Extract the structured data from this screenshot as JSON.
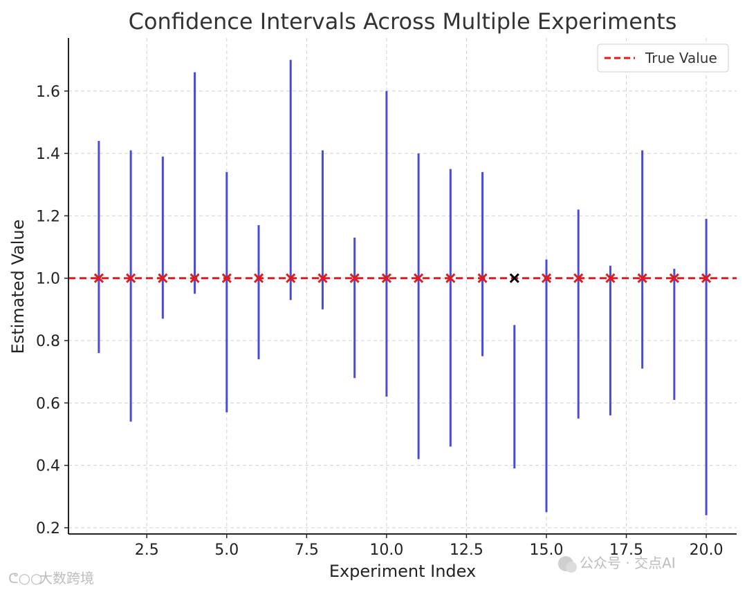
{
  "chart_data": {
    "type": "errorbar",
    "title": "Confidence Intervals Across Multiple Experiments",
    "xlabel": "Experiment Index",
    "ylabel": "Estimated Value",
    "xlim": [
      0.05,
      20.95
    ],
    "ylim": [
      0.18,
      1.77
    ],
    "xticks": [
      "2.5",
      "5.0",
      "7.5",
      "10.0",
      "12.5",
      "15.0",
      "17.5",
      "20.0"
    ],
    "yticks": [
      "0.2",
      "0.4",
      "0.6",
      "0.8",
      "1.0",
      "1.2",
      "1.4",
      "1.6"
    ],
    "grid": true,
    "legend": {
      "position": "top-right",
      "entries": [
        "True Value"
      ]
    },
    "true_value": 1.0,
    "series": [
      {
        "experiment": 1,
        "lower": 0.76,
        "upper": 1.44,
        "contains_true": true
      },
      {
        "experiment": 2,
        "lower": 0.54,
        "upper": 1.41,
        "contains_true": true
      },
      {
        "experiment": 3,
        "lower": 0.87,
        "upper": 1.39,
        "contains_true": true
      },
      {
        "experiment": 4,
        "lower": 0.95,
        "upper": 1.66,
        "contains_true": true
      },
      {
        "experiment": 5,
        "lower": 0.57,
        "upper": 1.34,
        "contains_true": true
      },
      {
        "experiment": 6,
        "lower": 0.74,
        "upper": 1.17,
        "contains_true": true
      },
      {
        "experiment": 7,
        "lower": 0.93,
        "upper": 1.7,
        "contains_true": true
      },
      {
        "experiment": 8,
        "lower": 0.9,
        "upper": 1.41,
        "contains_true": true
      },
      {
        "experiment": 9,
        "lower": 0.68,
        "upper": 1.13,
        "contains_true": true
      },
      {
        "experiment": 10,
        "lower": 0.62,
        "upper": 1.6,
        "contains_true": true
      },
      {
        "experiment": 11,
        "lower": 0.42,
        "upper": 1.4,
        "contains_true": true
      },
      {
        "experiment": 12,
        "lower": 0.46,
        "upper": 1.35,
        "contains_true": true
      },
      {
        "experiment": 13,
        "lower": 0.75,
        "upper": 1.34,
        "contains_true": true
      },
      {
        "experiment": 14,
        "lower": 0.39,
        "upper": 0.85,
        "contains_true": false
      },
      {
        "experiment": 15,
        "lower": 0.25,
        "upper": 1.06,
        "contains_true": true
      },
      {
        "experiment": 16,
        "lower": 0.55,
        "upper": 1.22,
        "contains_true": true
      },
      {
        "experiment": 17,
        "lower": 0.56,
        "upper": 1.04,
        "contains_true": true
      },
      {
        "experiment": 18,
        "lower": 0.71,
        "upper": 1.41,
        "contains_true": true
      },
      {
        "experiment": 19,
        "lower": 0.61,
        "upper": 1.03,
        "contains_true": true
      },
      {
        "experiment": 20,
        "lower": 0.24,
        "upper": 1.19,
        "contains_true": true
      }
    ],
    "colors": {
      "interval": "#4b4bd8",
      "true_line": "#e31a1c",
      "marker_hit": "#e31a1c",
      "marker_miss": "#000000",
      "grid": "#d0d0d0"
    }
  },
  "watermarks": {
    "left": "大数跨境",
    "right": "公众号 · 交点AI"
  }
}
